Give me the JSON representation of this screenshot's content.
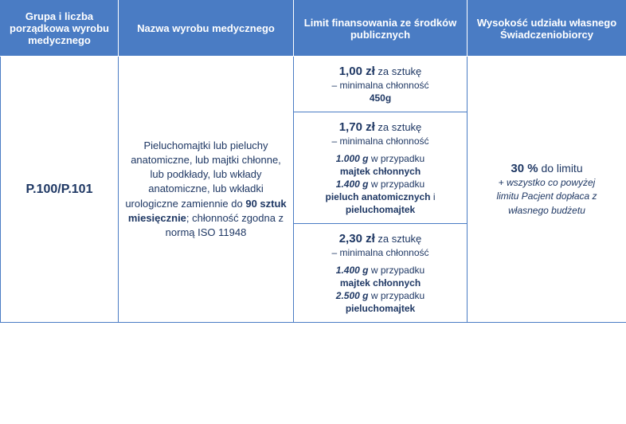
{
  "colors": {
    "header_bg": "#4a7cc4",
    "header_text": "#ffffff",
    "body_text": "#1f3864",
    "border": "#4a7cc4",
    "bg": "#ffffff"
  },
  "headers": {
    "col1": "Grupa i liczba porządkowa wyrobu medycznego",
    "col2": "Nazwa wyrobu medycznego",
    "col3": "Limit finansowania ze środków publicznych",
    "col4": "Wysokość udziału własnego Świadczeniobiorcy"
  },
  "row": {
    "group_code": "P.100/P.101",
    "product_desc_pre": "Pieluchomajtki lub pieluchy anatomiczne, lub majtki chłonne, lub podkłady, lub wkłady anatomiczne, lub wkładki urologiczne zamiennie do ",
    "product_desc_bold": "90 sztuk miesięcznie",
    "product_desc_post": "; chłonność zgodna z normą ISO 11948",
    "limits": [
      {
        "price": "1,00 zł",
        "per": " za sztukę",
        "sub_label": "– minimalna chłonność",
        "lines": [
          {
            "bold": "450g"
          }
        ]
      },
      {
        "price": "1,70 zł",
        "per": " za sztukę",
        "sub_label": "– minimalna chłonność",
        "lines": [
          {
            "italic_bold": "1.000 g",
            "plain": " w przypadku"
          },
          {
            "bold": "majtek chłonnych"
          },
          {
            "italic_bold": "1.400 g",
            "plain": " w przypadku"
          },
          {
            "bold_run1": "pieluch anatomicznych",
            "plain2": " i"
          },
          {
            "bold": "pieluchomajtek"
          }
        ]
      },
      {
        "price": "2,30 zł",
        "per": " za sztukę",
        "sub_label": "– minimalna chłonność",
        "lines": [
          {
            "italic_bold": "1.400 g",
            "plain": " w przypadku"
          },
          {
            "bold": "majtek chłonnych"
          },
          {
            "italic_bold": "2.500 g",
            "plain": " w przypadku"
          },
          {
            "bold": "pieluchomajtek"
          }
        ]
      }
    ],
    "share": {
      "pct": "30 %",
      "to_limit": " do limitu",
      "note_1": "+ wszystko co powyżej",
      "note_2": "limitu Pacjent dopłaca z",
      "note_3": "własnego budżetu"
    }
  }
}
